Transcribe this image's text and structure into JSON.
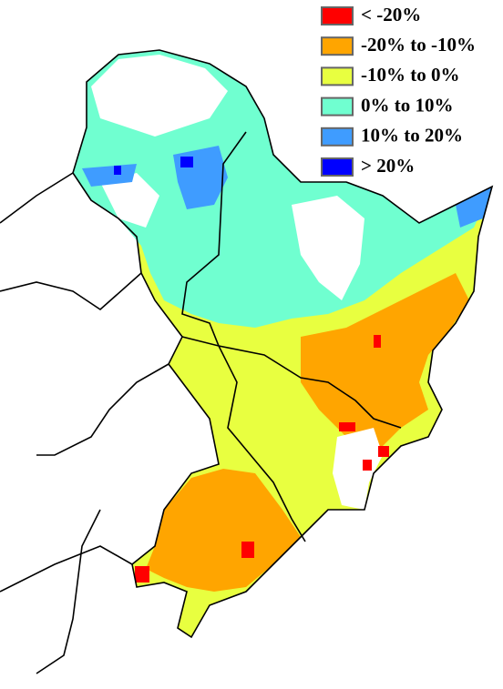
{
  "legend": {
    "items": [
      {
        "label": "< -20%",
        "color": "#ff0000"
      },
      {
        "label": "-20% to -10%",
        "color": "#ffa500"
      },
      {
        "label": "-10% to 0%",
        "color": "#e8ff40"
      },
      {
        "label": "0% to 10%",
        "color": "#70ffd0"
      },
      {
        "label": "10% to 20%",
        "color": "#3f9cff"
      },
      {
        "label": "> 20%",
        "color": "#0000ff"
      }
    ]
  }
}
